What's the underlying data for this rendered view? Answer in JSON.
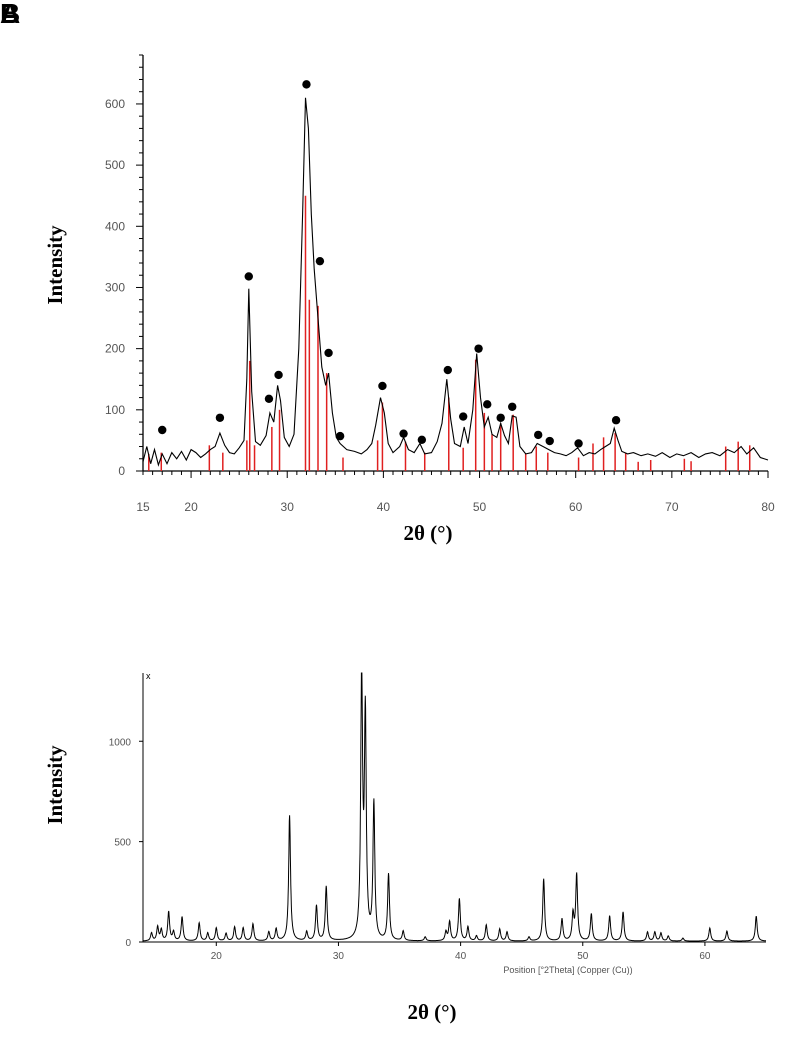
{
  "panel_labels": [
    "B",
    "A"
  ],
  "colors": {
    "trace": "#000000",
    "reference": "#e02020",
    "marker": "#000000",
    "text": "#555555"
  },
  "chart_data": [
    {
      "type": "line",
      "xlabel": "2θ (°)",
      "ylabel": "Intensity",
      "xlim": [
        15,
        80
      ],
      "ylim": [
        0,
        680
      ],
      "x_ticks": [
        15,
        20,
        30,
        40,
        50,
        60,
        70,
        80
      ],
      "y_ticks": [
        0,
        100,
        200,
        300,
        400,
        500,
        600
      ],
      "series": [
        {
          "values_xy": [
            [
              15,
              15
            ],
            [
              15.4,
              40
            ],
            [
              15.8,
              12
            ],
            [
              16.2,
              35
            ],
            [
              16.6,
              10
            ],
            [
              17.0,
              28
            ],
            [
              17.5,
              12
            ],
            [
              18.0,
              30
            ],
            [
              18.5,
              20
            ],
            [
              19.0,
              32
            ],
            [
              19.5,
              18
            ],
            [
              20.0,
              35
            ],
            [
              20.5,
              30
            ],
            [
              21.0,
              22
            ],
            [
              21.5,
              28
            ],
            [
              22.0,
              35
            ],
            [
              22.5,
              40
            ],
            [
              23.0,
              62
            ],
            [
              23.5,
              42
            ],
            [
              24.0,
              30
            ],
            [
              24.5,
              28
            ],
            [
              25.0,
              38
            ],
            [
              25.5,
              50
            ],
            [
              25.8,
              150
            ],
            [
              26.0,
              298
            ],
            [
              26.3,
              130
            ],
            [
              26.7,
              48
            ],
            [
              27.2,
              42
            ],
            [
              27.8,
              58
            ],
            [
              28.2,
              95
            ],
            [
              28.6,
              80
            ],
            [
              29.0,
              140
            ],
            [
              29.3,
              115
            ],
            [
              29.7,
              55
            ],
            [
              30.2,
              40
            ],
            [
              30.7,
              60
            ],
            [
              31.2,
              200
            ],
            [
              31.6,
              420
            ],
            [
              31.9,
              610
            ],
            [
              32.2,
              560
            ],
            [
              32.5,
              420
            ],
            [
              32.8,
              330
            ],
            [
              33.2,
              250
            ],
            [
              33.6,
              170
            ],
            [
              34.0,
              140
            ],
            [
              34.3,
              160
            ],
            [
              34.7,
              95
            ],
            [
              35.1,
              55
            ],
            [
              35.5,
              45
            ],
            [
              36.2,
              35
            ],
            [
              37.0,
              32
            ],
            [
              37.7,
              28
            ],
            [
              38.3,
              35
            ],
            [
              38.8,
              45
            ],
            [
              39.2,
              75
            ],
            [
              39.7,
              120
            ],
            [
              40.1,
              95
            ],
            [
              40.5,
              45
            ],
            [
              41.0,
              30
            ],
            [
              41.7,
              40
            ],
            [
              42.1,
              55
            ],
            [
              42.6,
              35
            ],
            [
              43.2,
              30
            ],
            [
              43.8,
              45
            ],
            [
              44.3,
              28
            ],
            [
              45.0,
              30
            ],
            [
              45.6,
              48
            ],
            [
              46.1,
              78
            ],
            [
              46.6,
              150
            ],
            [
              47.0,
              85
            ],
            [
              47.4,
              45
            ],
            [
              48.0,
              40
            ],
            [
              48.4,
              72
            ],
            [
              48.8,
              45
            ],
            [
              49.3,
              100
            ],
            [
              49.7,
              192
            ],
            [
              50.1,
              120
            ],
            [
              50.5,
              72
            ],
            [
              50.9,
              88
            ],
            [
              51.3,
              60
            ],
            [
              51.8,
              55
            ],
            [
              52.2,
              78
            ],
            [
              52.6,
              58
            ],
            [
              53.0,
              45
            ],
            [
              53.4,
              90
            ],
            [
              53.8,
              88
            ],
            [
              54.2,
              40
            ],
            [
              54.8,
              28
            ],
            [
              55.4,
              30
            ],
            [
              56.0,
              45
            ],
            [
              56.6,
              40
            ],
            [
              57.2,
              35
            ],
            [
              57.8,
              30
            ],
            [
              58.4,
              28
            ],
            [
              59.0,
              25
            ],
            [
              59.6,
              30
            ],
            [
              60.2,
              38
            ],
            [
              60.8,
              25
            ],
            [
              61.4,
              30
            ],
            [
              62.0,
              28
            ],
            [
              62.6,
              35
            ],
            [
              63.1,
              40
            ],
            [
              63.6,
              45
            ],
            [
              64.0,
              70
            ],
            [
              64.4,
              50
            ],
            [
              64.8,
              32
            ],
            [
              65.4,
              28
            ],
            [
              66.0,
              30
            ],
            [
              66.8,
              25
            ],
            [
              67.5,
              28
            ],
            [
              68.3,
              24
            ],
            [
              69.0,
              30
            ],
            [
              69.8,
              22
            ],
            [
              70.5,
              28
            ],
            [
              71.2,
              25
            ],
            [
              72.0,
              30
            ],
            [
              72.8,
              22
            ],
            [
              73.5,
              28
            ],
            [
              74.2,
              30
            ],
            [
              75.0,
              25
            ],
            [
              75.8,
              35
            ],
            [
              76.5,
              30
            ],
            [
              77.2,
              40
            ],
            [
              77.8,
              28
            ],
            [
              78.5,
              38
            ],
            [
              79.2,
              22
            ],
            [
              80,
              18
            ]
          ]
        }
      ],
      "reference_lines": [
        [
          15.6,
          28
        ],
        [
          16.9,
          30
        ],
        [
          21.9,
          42
        ],
        [
          23.3,
          30
        ],
        [
          25.8,
          50
        ],
        [
          26.1,
          180
        ],
        [
          26.6,
          42
        ],
        [
          28.4,
          72
        ],
        [
          29.2,
          100
        ],
        [
          31.9,
          450
        ],
        [
          32.3,
          280
        ],
        [
          33.2,
          270
        ],
        [
          34.1,
          160
        ],
        [
          35.8,
          22
        ],
        [
          39.4,
          50
        ],
        [
          39.9,
          112
        ],
        [
          42.3,
          48
        ],
        [
          44.3,
          30
        ],
        [
          46.8,
          120
        ],
        [
          48.3,
          38
        ],
        [
          49.6,
          182
        ],
        [
          50.5,
          95
        ],
        [
          51.3,
          60
        ],
        [
          52.2,
          78
        ],
        [
          53.5,
          92
        ],
        [
          54.8,
          28
        ],
        [
          55.9,
          40
        ],
        [
          57.1,
          30
        ],
        [
          60.3,
          22
        ],
        [
          61.8,
          45
        ],
        [
          62.9,
          55
        ],
        [
          64.1,
          62
        ],
        [
          65.2,
          30
        ],
        [
          66.5,
          15
        ],
        [
          67.8,
          18
        ],
        [
          71.3,
          20
        ],
        [
          72.0,
          16
        ],
        [
          75.6,
          40
        ],
        [
          76.9,
          48
        ],
        [
          78.1,
          42
        ]
      ],
      "markers": [
        [
          17.0,
          67
        ],
        [
          23.0,
          87
        ],
        [
          26.0,
          318
        ],
        [
          28.1,
          118
        ],
        [
          29.1,
          157
        ],
        [
          32.0,
          632
        ],
        [
          33.4,
          343
        ],
        [
          34.3,
          193
        ],
        [
          35.5,
          57
        ],
        [
          39.9,
          139
        ],
        [
          42.1,
          61
        ],
        [
          44.0,
          51
        ],
        [
          46.7,
          165
        ],
        [
          48.3,
          89
        ],
        [
          49.9,
          200
        ],
        [
          50.8,
          109
        ],
        [
          52.2,
          87
        ],
        [
          53.4,
          105
        ],
        [
          56.1,
          59
        ],
        [
          57.3,
          49
        ],
        [
          60.3,
          45
        ],
        [
          64.2,
          83
        ]
      ]
    },
    {
      "type": "line",
      "xlabel": "2θ (°)",
      "axis_caption": "Position [°2Theta] (Copper (Cu))",
      "corner_label": "x",
      "ylabel": "Intensity",
      "xlim": [
        14,
        65
      ],
      "ylim": [
        0,
        1340
      ],
      "x_ticks": [
        20,
        30,
        40,
        50,
        60
      ],
      "y_ticks": [
        0,
        500,
        1000
      ],
      "peaks": [
        [
          14.7,
          40
        ],
        [
          15.2,
          70
        ],
        [
          15.5,
          55
        ],
        [
          16.1,
          145
        ],
        [
          16.5,
          45
        ],
        [
          17.2,
          120
        ],
        [
          18.6,
          90
        ],
        [
          19.3,
          40
        ],
        [
          20.0,
          65
        ],
        [
          20.8,
          38
        ],
        [
          21.5,
          70
        ],
        [
          22.2,
          65
        ],
        [
          23.0,
          85
        ],
        [
          24.3,
          45
        ],
        [
          24.9,
          60
        ],
        [
          26.0,
          625
        ],
        [
          27.4,
          45
        ],
        [
          28.2,
          175
        ],
        [
          29.0,
          270
        ],
        [
          31.9,
          1340
        ],
        [
          32.2,
          1100
        ],
        [
          32.9,
          680
        ],
        [
          34.1,
          330
        ],
        [
          35.3,
          48
        ],
        [
          37.1,
          20
        ],
        [
          38.8,
          45
        ],
        [
          39.1,
          95
        ],
        [
          39.9,
          210
        ],
        [
          40.6,
          70
        ],
        [
          41.3,
          25
        ],
        [
          42.1,
          80
        ],
        [
          43.2,
          60
        ],
        [
          43.8,
          45
        ],
        [
          45.6,
          20
        ],
        [
          46.8,
          310
        ],
        [
          48.3,
          110
        ],
        [
          49.2,
          130
        ],
        [
          49.5,
          330
        ],
        [
          50.7,
          135
        ],
        [
          52.2,
          125
        ],
        [
          53.3,
          145
        ],
        [
          55.3,
          45
        ],
        [
          55.9,
          45
        ],
        [
          56.4,
          40
        ],
        [
          57.0,
          25
        ],
        [
          58.2,
          15
        ],
        [
          60.4,
          65
        ],
        [
          61.8,
          50
        ],
        [
          64.2,
          125
        ]
      ]
    }
  ]
}
